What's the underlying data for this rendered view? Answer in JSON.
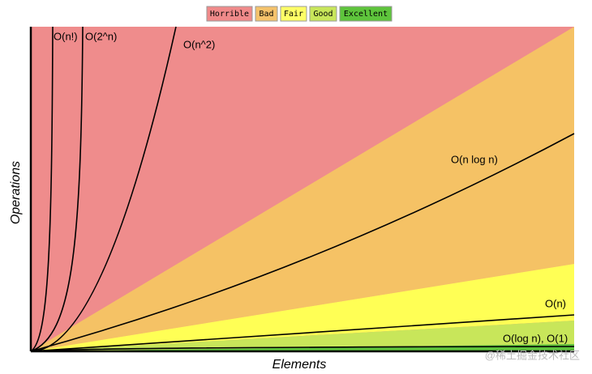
{
  "legend": [
    "Horrible",
    "Bad",
    "Fair",
    "Good",
    "Excellent"
  ],
  "curves": [
    "O(n!)",
    "O(2^n)",
    "O(n^2)",
    "O(n log n)",
    "O(n)",
    "O(log n), O(1)"
  ],
  "axes": {
    "y_label": "Operations",
    "x_label": "Elements"
  },
  "watermark": "@稀土掘金技术社区"
}
